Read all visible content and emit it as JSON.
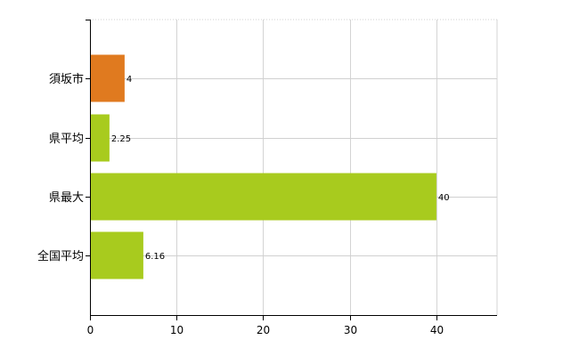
{
  "chart_data": {
    "type": "bar",
    "orientation": "horizontal",
    "categories": [
      "須坂市",
      "県平均",
      "県最大",
      "全国平均"
    ],
    "values": [
      4,
      2.25,
      40,
      6.16
    ],
    "data_labels": [
      "4",
      "2.25",
      "40",
      "6.16"
    ],
    "bar_colors": [
      "#e07a1f",
      "#a8cb1e",
      "#a8cb1e",
      "#a8cb1e"
    ],
    "xlim": [
      0,
      47
    ],
    "x_ticks": [
      0,
      10,
      20,
      30,
      40
    ],
    "x_tick_labels": [
      "0",
      "10",
      "20",
      "30",
      "40"
    ],
    "grid": true,
    "legend": "none",
    "title": "",
    "xlabel": "",
    "ylabel": ""
  }
}
